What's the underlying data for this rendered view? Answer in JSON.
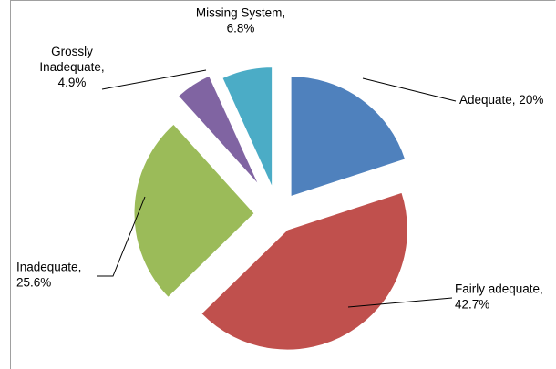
{
  "chart_data": {
    "type": "pie",
    "title": "",
    "series": [
      {
        "values": [
          {
            "label": "Adequate",
            "display_value": "20%",
            "value": 20.0,
            "color": "#4f81bd"
          },
          {
            "label": "Fairly adequate",
            "display_value": "42.7%",
            "value": 42.7,
            "color": "#c0504d"
          },
          {
            "label": "Inadequate",
            "display_value": "25.6%",
            "value": 25.6,
            "color": "#9bbb59"
          },
          {
            "label": "Grossly Inadequate",
            "display_value": "4.9%",
            "value": 4.9,
            "color": "#8064a2"
          },
          {
            "label": "Missing System",
            "display_value": "6.8%",
            "value": 6.8,
            "color": "#4bacc6"
          }
        ]
      }
    ],
    "legend": "none",
    "exploded": true,
    "data_labels": [
      {
        "lines": [
          "Adequate, 20%"
        ]
      },
      {
        "lines": [
          "Fairly adequate,",
          "42.7%"
        ]
      },
      {
        "lines": [
          "Inadequate,",
          "25.6%"
        ]
      },
      {
        "lines": [
          "Grossly",
          "Inadequate,",
          "4.9%"
        ]
      },
      {
        "lines": [
          "Missing System,",
          "6.8%"
        ]
      }
    ]
  }
}
